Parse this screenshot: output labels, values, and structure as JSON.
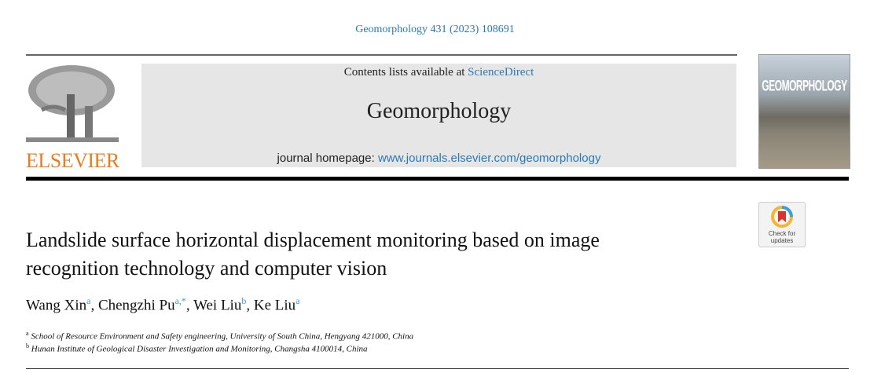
{
  "citation": "Geomorphology 431 (2023) 108691",
  "publisher": {
    "name": "ELSEVIER",
    "color": "#e87d1e"
  },
  "banner": {
    "contents_prefix": "Contents lists available at ",
    "sciencedirect": "ScienceDirect",
    "journal": "Geomorphology",
    "homepage_prefix": "journal homepage: ",
    "homepage_url": "www.journals.elsevier.com/geomorphology"
  },
  "cover": {
    "title": "GEOMORPHOLOGY"
  },
  "check_updates": {
    "line1": "Check for",
    "line2": "updates"
  },
  "article": {
    "title_line1": "Landslide surface horizontal displacement monitoring based on image",
    "title_line2": "recognition technology and computer vision",
    "authors": [
      {
        "name": "Wang Xin",
        "sup": "a",
        "sep": ", "
      },
      {
        "name": "Chengzhi Pu",
        "sup": "a,*",
        "sep": ", "
      },
      {
        "name": "Wei Liu",
        "sup": "b",
        "sep": ", "
      },
      {
        "name": "Ke Liu",
        "sup": "a",
        "sep": ""
      }
    ],
    "affiliations": [
      {
        "mark": "a",
        "text": "School of Resource Environment and Safety engineering, University of South China, Hengyang 421000, China"
      },
      {
        "mark": "b",
        "text": "Hunan Institute of Geological Disaster Investigation and Monitoring, Changsha 4100014, China"
      }
    ]
  },
  "link_color": "#2a7ab0"
}
